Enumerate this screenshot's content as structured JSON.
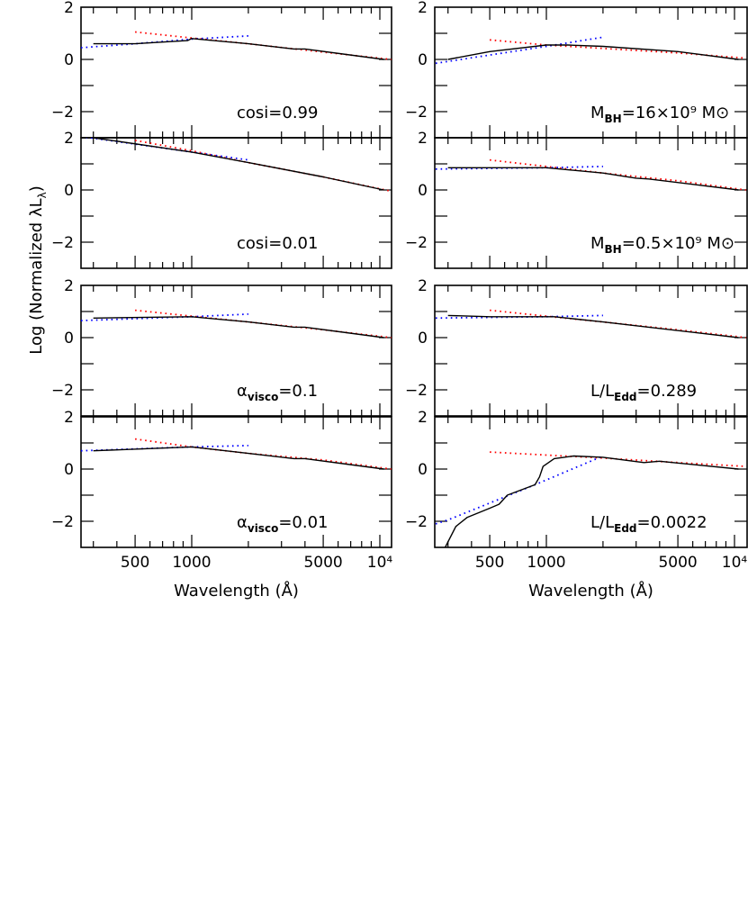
{
  "chart_data": {
    "type": "line",
    "layout": "4x2 grid of panels, shared axes",
    "ylabel": {
      "pre": "Log (Normalized λL",
      "sub": "λ",
      "post": ")"
    },
    "xlabel": "Wavelength (Å)",
    "x_scale": "log",
    "xlim": [
      258,
      11500
    ],
    "ylim": [
      -3,
      2
    ],
    "x_tick_labels": [
      {
        "value": 500,
        "label": "500"
      },
      {
        "value": 1000,
        "label": "1000"
      },
      {
        "value": 5000,
        "label": "5000"
      },
      {
        "value": 10000,
        "label": "10⁴"
      }
    ],
    "y_tick_labels": [
      {
        "value": 2,
        "label": "2"
      },
      {
        "value": 0,
        "label": "0"
      },
      {
        "value": -2,
        "label": "−2"
      }
    ],
    "grid": false,
    "series_styles": {
      "model": {
        "color": "#000000",
        "style": "solid"
      },
      "fit_blue": {
        "color": "#0000ff",
        "style": "dotted"
      },
      "fit_red": {
        "color": "#ff0000",
        "style": "dotted"
      }
    },
    "panels": [
      {
        "label": {
          "pre": "cosi=0.99",
          "sub": "",
          "post": ""
        },
        "model": [
          [
            300,
            0.6
          ],
          [
            500,
            0.6
          ],
          [
            950,
            0.72
          ],
          [
            1000,
            0.8
          ],
          [
            2000,
            0.6
          ],
          [
            3500,
            0.4
          ],
          [
            4000,
            0.4
          ],
          [
            10500,
            0
          ]
        ],
        "fit_blue": [
          [
            258,
            0.45
          ],
          [
            500,
            0.6
          ],
          [
            1000,
            0.78
          ],
          [
            2000,
            0.9
          ]
        ],
        "fit_red": [
          [
            500,
            1.05
          ],
          [
            1000,
            0.82
          ],
          [
            2000,
            0.6
          ],
          [
            5000,
            0.28
          ],
          [
            11500,
            0
          ]
        ]
      },
      {
        "label": {
          "pre": "M",
          "sub": "BH",
          "post": "=16×10⁹ M⊙"
        },
        "model": [
          [
            300,
            0
          ],
          [
            500,
            0.3
          ],
          [
            1000,
            0.55
          ],
          [
            1300,
            0.55
          ],
          [
            2000,
            0.5
          ],
          [
            5000,
            0.3
          ],
          [
            10500,
            0
          ]
        ],
        "fit_blue": [
          [
            258,
            -0.15
          ],
          [
            1000,
            0.5
          ],
          [
            2000,
            0.85
          ]
        ],
        "fit_red": [
          [
            500,
            0.75
          ],
          [
            1000,
            0.55
          ],
          [
            5000,
            0.25
          ],
          [
            11500,
            0.05
          ]
        ]
      },
      {
        "label": {
          "pre": "cosi=0.01",
          "sub": "",
          "post": ""
        },
        "model": [
          [
            300,
            2.0
          ],
          [
            1000,
            1.45
          ],
          [
            2000,
            1.05
          ],
          [
            5000,
            0.5
          ],
          [
            10500,
            0
          ]
        ],
        "fit_blue": [
          [
            258,
            2.05
          ],
          [
            1000,
            1.45
          ],
          [
            2000,
            1.15
          ]
        ],
        "fit_red": [
          [
            500,
            1.9
          ],
          [
            1000,
            1.5
          ],
          [
            2000,
            1.05
          ],
          [
            5000,
            0.5
          ],
          [
            11500,
            -0.05
          ]
        ]
      },
      {
        "label": {
          "pre": "M",
          "sub": "BH",
          "post": "=0.5×10⁹ M⊙"
        },
        "model": [
          [
            300,
            0.85
          ],
          [
            1000,
            0.85
          ],
          [
            2000,
            0.65
          ],
          [
            3000,
            0.45
          ],
          [
            3500,
            0.42
          ],
          [
            10500,
            0
          ]
        ],
        "fit_blue": [
          [
            258,
            0.8
          ],
          [
            1000,
            0.85
          ],
          [
            2000,
            0.9
          ]
        ],
        "fit_red": [
          [
            500,
            1.15
          ],
          [
            1000,
            0.9
          ],
          [
            2000,
            0.65
          ],
          [
            5000,
            0.35
          ],
          [
            11500,
            0
          ]
        ]
      },
      {
        "label": {
          "pre": "α",
          "sub": "visco",
          "post": "=0.1"
        },
        "model": [
          [
            300,
            0.75
          ],
          [
            1000,
            0.8
          ],
          [
            2000,
            0.6
          ],
          [
            3500,
            0.4
          ],
          [
            4000,
            0.4
          ],
          [
            10500,
            0
          ]
        ],
        "fit_blue": [
          [
            258,
            0.65
          ],
          [
            1000,
            0.8
          ],
          [
            2000,
            0.9
          ]
        ],
        "fit_red": [
          [
            500,
            1.05
          ],
          [
            1000,
            0.82
          ],
          [
            2000,
            0.6
          ],
          [
            5000,
            0.3
          ],
          [
            11500,
            0
          ]
        ]
      },
      {
        "label": {
          "pre": "L/L",
          "sub": "Edd",
          "post": "=0.289"
        },
        "model": [
          [
            300,
            0.85
          ],
          [
            500,
            0.8
          ],
          [
            1100,
            0.8
          ],
          [
            2000,
            0.6
          ],
          [
            3500,
            0.4
          ],
          [
            10500,
            0
          ]
        ],
        "fit_blue": [
          [
            258,
            0.75
          ],
          [
            1000,
            0.8
          ],
          [
            2000,
            0.85
          ]
        ],
        "fit_red": [
          [
            500,
            1.05
          ],
          [
            1000,
            0.82
          ],
          [
            2000,
            0.6
          ],
          [
            5000,
            0.3
          ],
          [
            11500,
            0
          ]
        ]
      },
      {
        "label": {
          "pre": "α",
          "sub": "visco",
          "post": "=0.01"
        },
        "model": [
          [
            300,
            0.7
          ],
          [
            1000,
            0.85
          ],
          [
            2000,
            0.6
          ],
          [
            3500,
            0.4
          ],
          [
            4000,
            0.4
          ],
          [
            10500,
            0
          ]
        ],
        "fit_blue": [
          [
            258,
            0.7
          ],
          [
            1000,
            0.85
          ],
          [
            2000,
            0.9
          ]
        ],
        "fit_red": [
          [
            500,
            1.15
          ],
          [
            1000,
            0.85
          ],
          [
            2000,
            0.6
          ],
          [
            5000,
            0.35
          ],
          [
            11500,
            0
          ]
        ]
      },
      {
        "label": {
          "pre": "L/L",
          "sub": "Edd",
          "post": "=0.0022"
        },
        "model": [
          [
            290,
            -3
          ],
          [
            330,
            -2.2
          ],
          [
            380,
            -1.85
          ],
          [
            500,
            -1.5
          ],
          [
            560,
            -1.35
          ],
          [
            620,
            -1.0
          ],
          [
            870,
            -0.6
          ],
          [
            920,
            -0.3
          ],
          [
            960,
            0.1
          ],
          [
            1100,
            0.4
          ],
          [
            1400,
            0.5
          ],
          [
            2000,
            0.45
          ],
          [
            3300,
            0.25
          ],
          [
            4000,
            0.3
          ],
          [
            10500,
            0
          ]
        ],
        "fit_blue": [
          [
            258,
            -2.1
          ],
          [
            300,
            -1.95
          ],
          [
            870,
            -0.6
          ],
          [
            2000,
            0.5
          ]
        ],
        "fit_red": [
          [
            500,
            0.65
          ],
          [
            2000,
            0.42
          ],
          [
            5000,
            0.25
          ],
          [
            11500,
            0.1
          ]
        ]
      }
    ]
  }
}
